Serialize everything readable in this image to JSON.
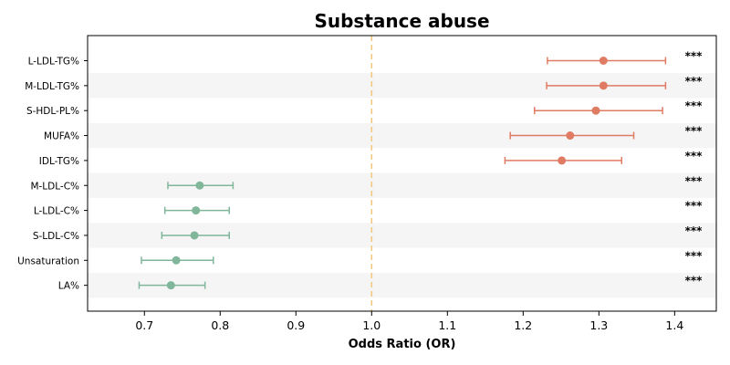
{
  "chart_data": {
    "type": "forest",
    "title": "Substance abuse",
    "xlabel": "Odds Ratio (OR)",
    "xlim": [
      0.625,
      1.455
    ],
    "xticks": [
      0.7,
      0.8,
      0.9,
      1.0,
      1.1,
      1.2,
      1.3,
      1.4
    ],
    "xtick_labels": [
      "0.7",
      "0.8",
      "0.9",
      "1.0",
      "1.1",
      "1.2",
      "1.3",
      "1.4"
    ],
    "reference_line": 1.0,
    "row_banding": true,
    "colors": {
      "positive": "#e07b63",
      "negative": "#80b69a",
      "reference": "#f2c77b",
      "band": "#f5f5f5"
    },
    "series": [
      {
        "label": "L-LDL-TG%",
        "or": 1.306,
        "ci_low": 1.232,
        "ci_high": 1.388,
        "significance": "***"
      },
      {
        "label": "M-LDL-TG%",
        "or": 1.306,
        "ci_low": 1.231,
        "ci_high": 1.388,
        "significance": "***"
      },
      {
        "label": "S-HDL-PL%",
        "or": 1.296,
        "ci_low": 1.215,
        "ci_high": 1.384,
        "significance": "***"
      },
      {
        "label": "MUFA%",
        "or": 1.262,
        "ci_low": 1.183,
        "ci_high": 1.346,
        "significance": "***"
      },
      {
        "label": "IDL-TG%",
        "or": 1.251,
        "ci_low": 1.176,
        "ci_high": 1.33,
        "significance": "***"
      },
      {
        "label": "M-LDL-C%",
        "or": 0.773,
        "ci_low": 0.731,
        "ci_high": 0.817,
        "significance": "***"
      },
      {
        "label": "L-LDL-C%",
        "or": 0.768,
        "ci_low": 0.727,
        "ci_high": 0.812,
        "significance": "***"
      },
      {
        "label": "S-LDL-C%",
        "or": 0.766,
        "ci_low": 0.723,
        "ci_high": 0.812,
        "significance": "***"
      },
      {
        "label": "Unsaturation",
        "or": 0.742,
        "ci_low": 0.696,
        "ci_high": 0.791,
        "significance": "***"
      },
      {
        "label": "LA%",
        "or": 0.735,
        "ci_low": 0.693,
        "ci_high": 0.78,
        "significance": "***"
      }
    ]
  }
}
